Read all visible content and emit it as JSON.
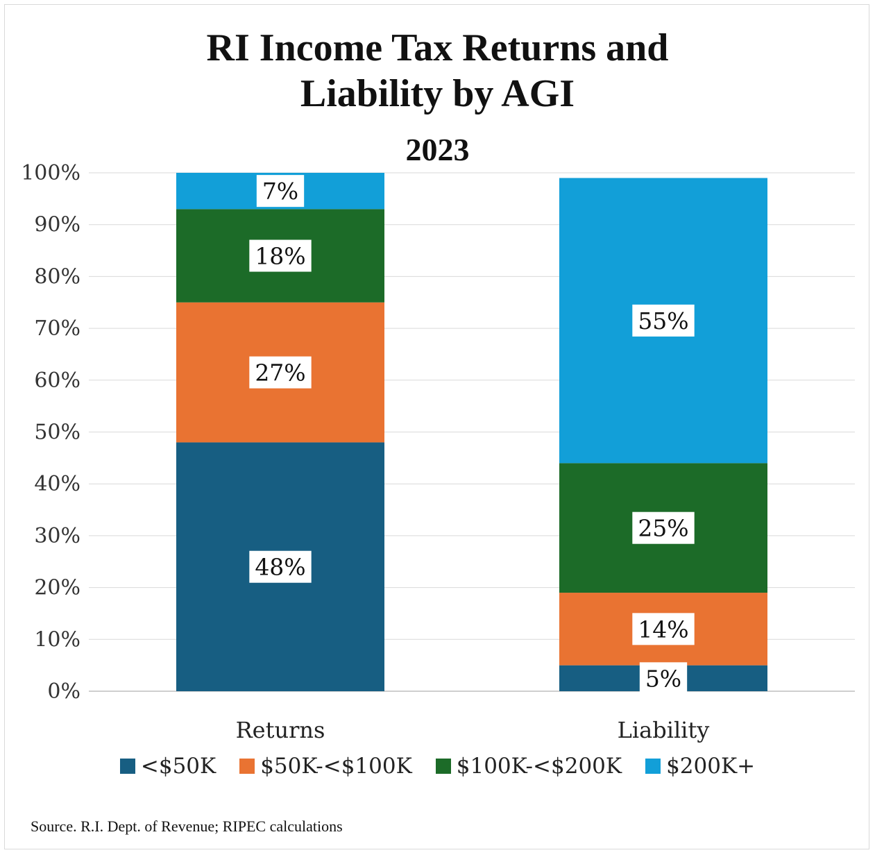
{
  "chart_data": {
    "type": "bar",
    "stacked": true,
    "title_line1": "RI Income Tax Returns and",
    "title_line2": "Liability by AGI",
    "subtitle": "2023",
    "categories": [
      "Returns",
      "Liability"
    ],
    "series": [
      {
        "name": "<$50K",
        "color": "#175E82",
        "values": [
          48,
          5
        ],
        "labels": [
          "48%",
          "5%"
        ]
      },
      {
        "name": "$50K-<$100K",
        "color": "#E97332",
        "values": [
          27,
          14
        ],
        "labels": [
          "27%",
          "14%"
        ]
      },
      {
        "name": "$100K-<$200K",
        "color": "#1C6B28",
        "values": [
          18,
          25
        ],
        "labels": [
          "18%",
          "25%"
        ]
      },
      {
        "name": "$200K+",
        "color": "#129FD8",
        "values": [
          7,
          55
        ],
        "labels": [
          "7%",
          "55%"
        ]
      }
    ],
    "yticks": [
      "0%",
      "10%",
      "20%",
      "30%",
      "40%",
      "50%",
      "60%",
      "70%",
      "80%",
      "90%",
      "100%"
    ],
    "ylim": [
      0,
      100
    ],
    "grid": true,
    "legend_position": "bottom"
  },
  "source": "Source. R.I. Dept. of Revenue; RIPEC calculations"
}
